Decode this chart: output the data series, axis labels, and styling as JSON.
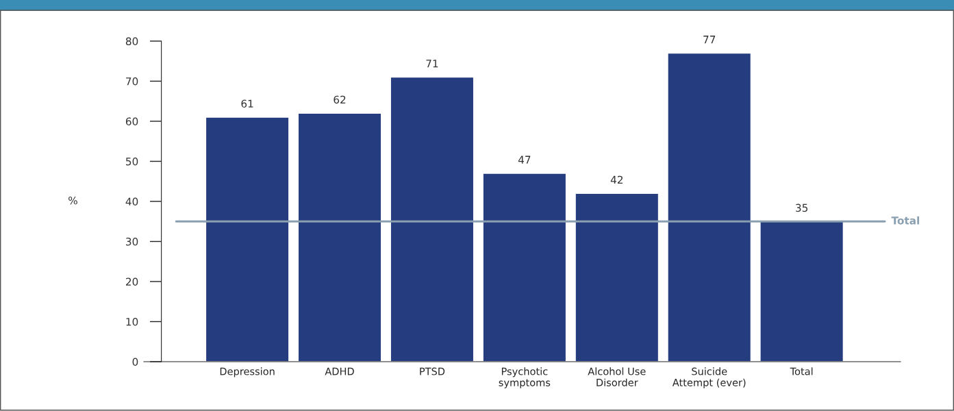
{
  "chart_data": {
    "type": "bar",
    "ylabel": "%",
    "categories": [
      "Depression",
      "ADHD",
      "PTSD",
      "Psychotic\nsymptoms",
      "Alcohol Use\nDisorder",
      "Suicide\nAttempt (ever)",
      "Total"
    ],
    "values": [
      61,
      62,
      71,
      47,
      42,
      77,
      35
    ],
    "color": "#253d7f",
    "data_labels": true,
    "ylim": [
      0,
      80
    ],
    "yticks": [
      0,
      10,
      20,
      30,
      40,
      50,
      60,
      70,
      80
    ],
    "ref_lines": [
      {
        "axis": "y",
        "value": 35,
        "label": "Total",
        "color": "#8a9fb0"
      }
    ],
    "grid": false,
    "legend": false
  }
}
